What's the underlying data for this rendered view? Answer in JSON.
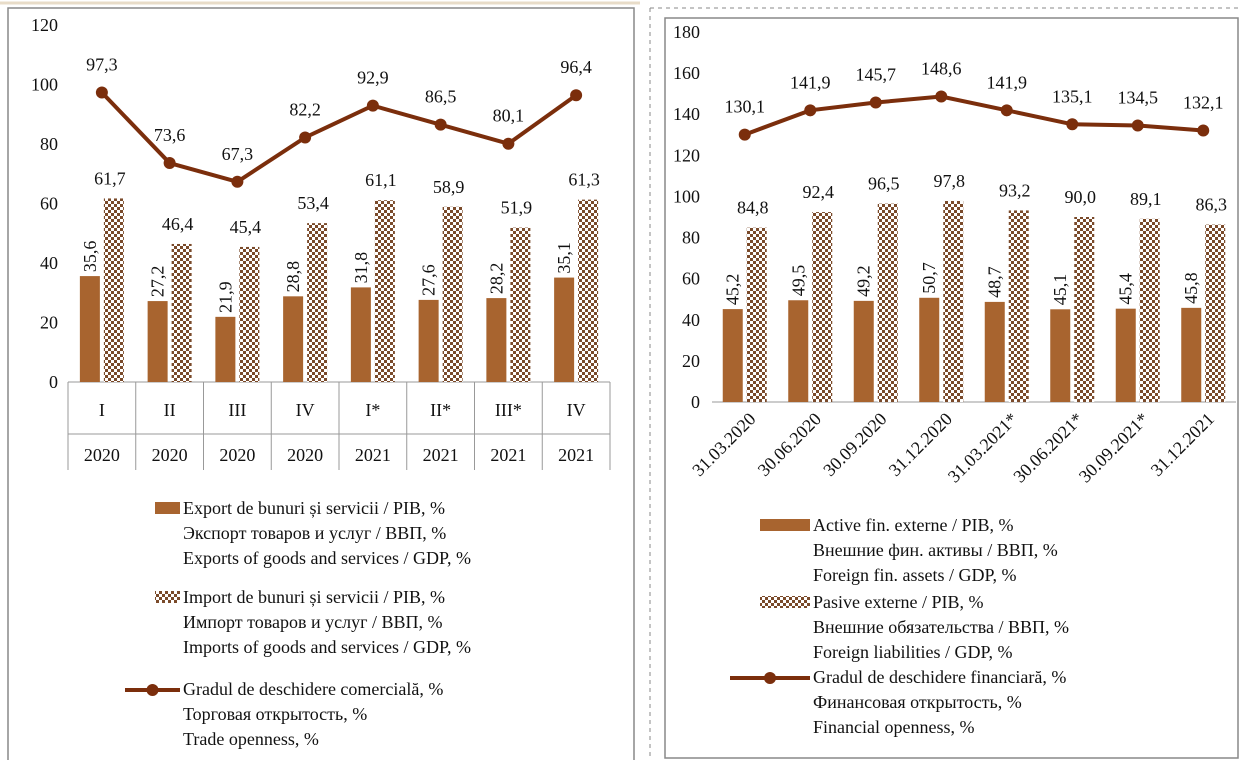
{
  "chart_data": [
    {
      "type": "bar-line",
      "categories": [
        "I",
        "II",
        "III",
        "IV",
        "I*",
        "II*",
        "III*",
        "IV"
      ],
      "category_groups": [
        "2020",
        "2020",
        "2020",
        "2020",
        "2021",
        "2021",
        "2021",
        "2021"
      ],
      "ylim": [
        0,
        120
      ],
      "yticks": [
        0,
        20,
        40,
        60,
        80,
        100,
        120
      ],
      "series": [
        {
          "name": "Export de bunuri și servicii / PIB, %\nЭкспорт товаров и услуг / ВВП, %\nExports of goods and services / GDP, %",
          "kind": "bar",
          "color": "#a8642f",
          "values": [
            35.6,
            27.2,
            21.9,
            28.8,
            31.8,
            27.6,
            28.2,
            35.1
          ],
          "value_labels": [
            "35,6",
            "27,2",
            "21,9",
            "28,8",
            "31,8",
            "27,6",
            "28,2",
            "35,1"
          ]
        },
        {
          "name": "Import de bunuri și servicii / PIB, %\nИмпорт товаров и услуг / ВВП, %\nImports of goods and services / GDP, %",
          "kind": "checkered-bar",
          "color": "#7a4a2a",
          "values": [
            61.7,
            46.4,
            45.4,
            53.4,
            61.1,
            58.9,
            51.9,
            61.3
          ],
          "value_labels": [
            "61,7",
            "46,4",
            "45,4",
            "53,4",
            "61,1",
            "58,9",
            "51,9",
            "61,3"
          ]
        },
        {
          "name": "Gradul de deschidere comercială, %\nТорговая открытость, %\nTrade openness, %",
          "kind": "line",
          "color": "#7b2e0c",
          "values": [
            97.3,
            73.6,
            67.3,
            82.2,
            92.9,
            86.5,
            80.1,
            96.4
          ],
          "value_labels": [
            "97,3",
            "73,6",
            "67,3",
            "82,2",
            "92,9",
            "86,5",
            "80,1",
            "96,4"
          ]
        }
      ]
    },
    {
      "type": "bar-line",
      "categories": [
        "31.03.2020",
        "30.06.2020",
        "30.09.2020",
        "31.12.2020",
        "31.03.2021*",
        "30.06.2021*",
        "30.09.2021*",
        "31.12.2021"
      ],
      "ylim": [
        0,
        180
      ],
      "yticks": [
        0,
        20,
        40,
        60,
        80,
        100,
        120,
        140,
        160,
        180
      ],
      "series": [
        {
          "name": "Active fin. externe / PIB, %\nВнешние фин. активы / ВВП, %\nForeign fin. assets / GDP, %",
          "kind": "bar",
          "color": "#a8642f",
          "values": [
            45.2,
            49.5,
            49.2,
            50.7,
            48.7,
            45.1,
            45.4,
            45.8
          ],
          "value_labels": [
            "45,2",
            "49,5",
            "49,2",
            "50,7",
            "48,7",
            "45,1",
            "45,4",
            "45,8"
          ]
        },
        {
          "name": "Pasive externe / PIB, %\nВнешние обязательства / ВВП, %\nForeign liabilities / GDP, %",
          "kind": "checkered-bar",
          "color": "#7a4a2a",
          "values": [
            84.8,
            92.4,
            96.5,
            97.8,
            93.2,
            90.0,
            89.1,
            86.3
          ],
          "value_labels": [
            "84,8",
            "92,4",
            "96,5",
            "97,8",
            "93,2",
            "90,0",
            "89,1",
            "86,3"
          ]
        },
        {
          "name": "Gradul de deschidere financiară, %\nФинансовая открытость, %\nFinancial openness, %",
          "kind": "line",
          "color": "#7b2e0c",
          "values": [
            130.1,
            141.9,
            145.7,
            148.6,
            141.9,
            135.1,
            134.5,
            132.1
          ],
          "value_labels": [
            "130,1",
            "141,9",
            "145,7",
            "148,6",
            "141,9",
            "135,1",
            "134,5",
            "132,1"
          ]
        }
      ]
    }
  ]
}
